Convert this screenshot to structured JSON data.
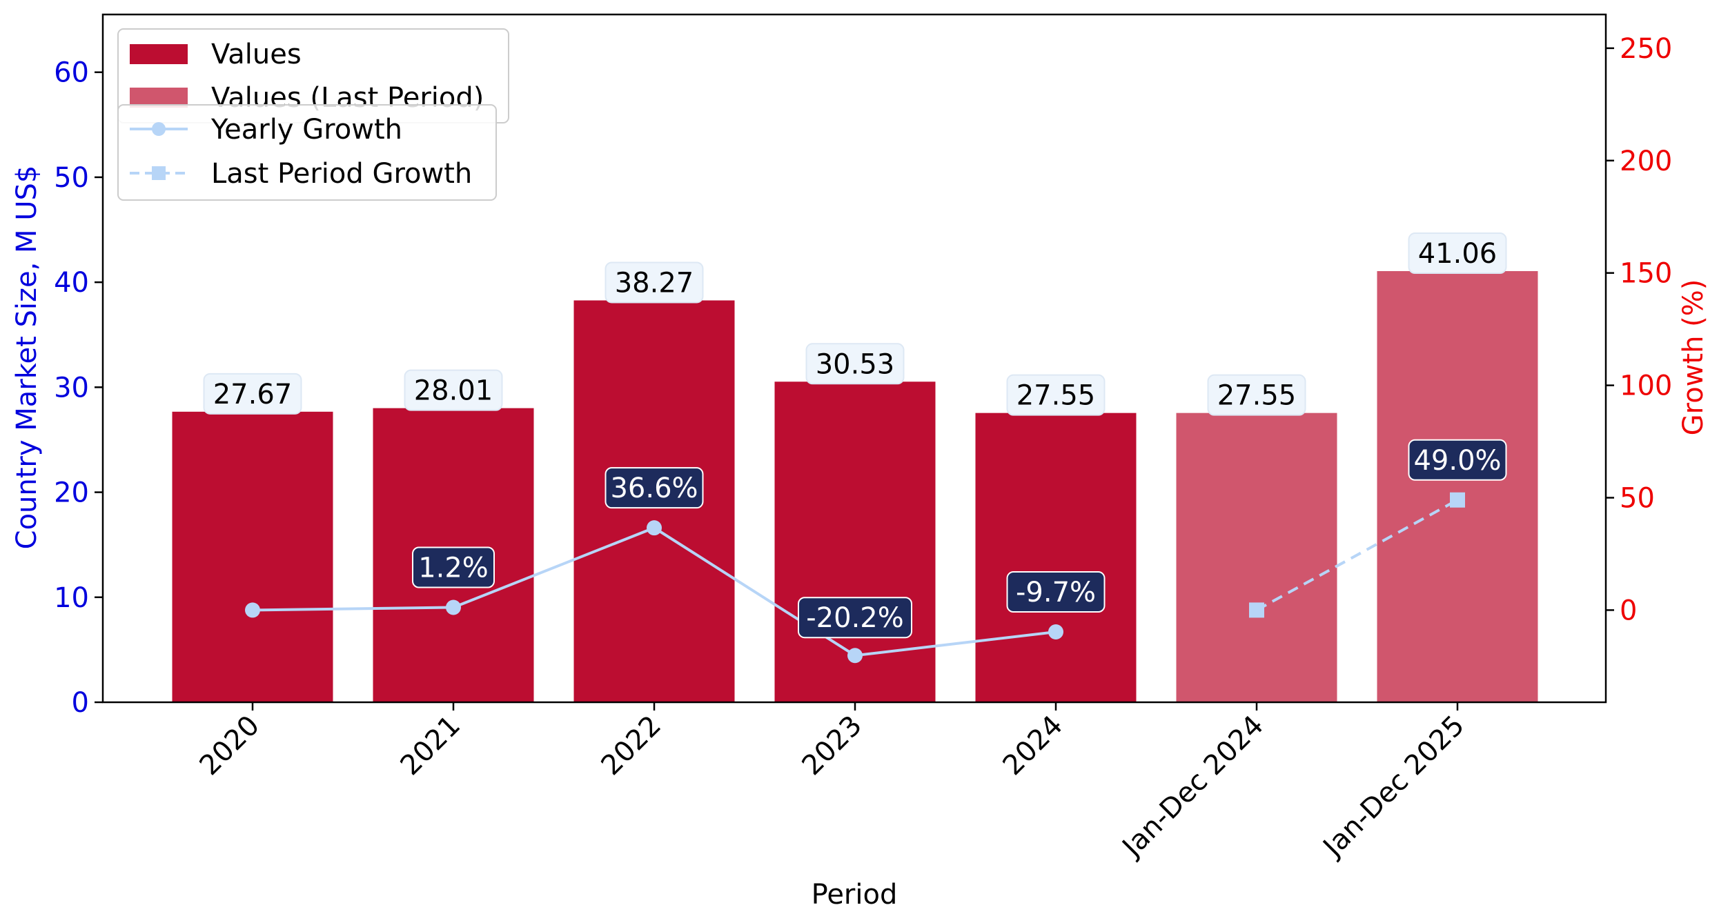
{
  "chart_data": {
    "type": "bar",
    "xlabel": "Period",
    "ylabel": "Country Market Size, M US$",
    "y2label": "Growth (%)",
    "categories": [
      "2020",
      "2021",
      "2022",
      "2023",
      "2024",
      "Jan-Dec 2024",
      "Jan-Dec 2025"
    ],
    "ylim": [
      0,
      65.5
    ],
    "y2lim": [
      -41,
      265
    ],
    "yticks": [
      0,
      10,
      20,
      30,
      40,
      50,
      60
    ],
    "y2ticks": [
      0,
      50,
      100,
      150,
      200,
      250
    ],
    "grid": false,
    "legend_placement": "top-left",
    "series": [
      {
        "name": "Values",
        "kind": "bar",
        "axis": "left",
        "color": "#bc0d31",
        "values": [
          27.67,
          28.01,
          38.27,
          30.53,
          27.55,
          null,
          null
        ],
        "labels": [
          "27.67",
          "28.01",
          "38.27",
          "30.53",
          "27.55",
          "",
          ""
        ]
      },
      {
        "name": "Values (Last Period)",
        "kind": "bar",
        "axis": "left",
        "color": "#d0566d",
        "values": [
          null,
          null,
          null,
          null,
          null,
          27.55,
          41.06
        ],
        "labels": [
          "",
          "",
          "",
          "",
          "",
          "27.55",
          "41.06"
        ]
      },
      {
        "name": "Yearly Growth",
        "kind": "line",
        "axis": "right",
        "color": "#b7d5f7",
        "marker": "circle",
        "values": [
          0,
          1.2,
          36.6,
          -20.2,
          -9.7,
          null,
          null
        ],
        "labels": [
          "",
          "1.2%",
          "36.6%",
          "-20.2%",
          "-9.7%",
          "",
          ""
        ]
      },
      {
        "name": "Last Period Growth",
        "kind": "line",
        "axis": "right",
        "color": "#b7d5f7",
        "marker": "square",
        "dashed": true,
        "values": [
          null,
          null,
          null,
          null,
          null,
          0,
          49.0
        ],
        "labels": [
          "",
          "",
          "",
          "",
          "",
          "",
          "49.0%"
        ]
      }
    ],
    "colors": {
      "left_axis": "#0000dd",
      "right_axis": "#ee0000",
      "bar_label_bg": "#eef5fc",
      "growth_label_bg": "#1d2b5c"
    }
  }
}
